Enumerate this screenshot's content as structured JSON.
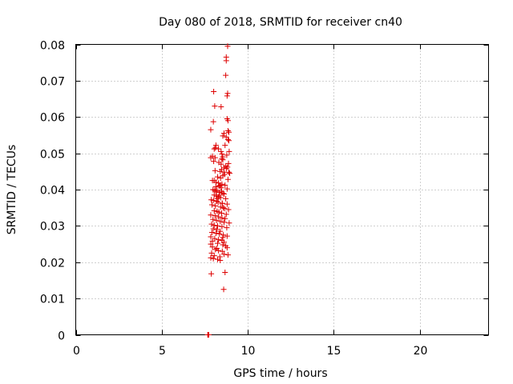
{
  "chart_data": {
    "type": "scatter",
    "title": "Day 080 of 2018, SRMTID for receiver cn40",
    "xlabel": "GPS time / hours",
    "ylabel": "SRMTID / TECUs",
    "xlim": [
      0,
      24
    ],
    "ylim": [
      0,
      0.08
    ],
    "x_ticks": [
      "0",
      "5",
      "10",
      "15",
      "20"
    ],
    "y_ticks": [
      "0",
      "0.01",
      "0.02",
      "0.03",
      "0.04",
      "0.05",
      "0.06",
      "0.07",
      "0.08"
    ],
    "grid": true,
    "marker": "plus",
    "color": "#dd0000",
    "series": [
      {
        "x": [
          8.83,
          8.75,
          8.75,
          8.72,
          8.83,
          8.8,
          8.02,
          8.45,
          8.08,
          8.8,
          8.85,
          8.0,
          7.85,
          8.85,
          8.9,
          8.62,
          8.55,
          8.75,
          8.85,
          8.9,
          8.15,
          8.12,
          8.68,
          8.05,
          8.3,
          8.45,
          8.5,
          8.92,
          8.78,
          7.95,
          8.1,
          8.55,
          8.5,
          7.85,
          8.55,
          8.02,
          8.32,
          8.45,
          8.88,
          8.72,
          8.82,
          8.62,
          8.75,
          8.48,
          8.1,
          8.4,
          8.9,
          8.95,
          8.65,
          8.55,
          8.25,
          8.42,
          8.85,
          7.95,
          8.05,
          8.15,
          8.3,
          8.5,
          8.68,
          8.35,
          8.15,
          8.45,
          8.8,
          7.98,
          8.08,
          8.22,
          8.48,
          8.35,
          8.55,
          8.62,
          8.05,
          8.18,
          8.3,
          8.42,
          8.72,
          7.88,
          8.0,
          8.2,
          8.28,
          8.52,
          8.8,
          7.92,
          8.12,
          8.42,
          8.58,
          8.65,
          8.88,
          8.05,
          8.22,
          8.32,
          8.48,
          8.75,
          7.85,
          8.1,
          8.3,
          8.5,
          8.68,
          7.98,
          8.18,
          8.4,
          8.62,
          8.92,
          7.9,
          8.05,
          8.25,
          8.5,
          8.78,
          8.0,
          8.2,
          8.4,
          7.92,
          8.15,
          8.35,
          8.58,
          8.8,
          7.85,
          8.55,
          8.08,
          8.3,
          8.5,
          7.95,
          8.62,
          8.25,
          7.85,
          8.55,
          8.72,
          7.95,
          8.8,
          8.2,
          8.12,
          8.3,
          8.52,
          7.9,
          8.62,
          8.85,
          8.05,
          8.38,
          7.85,
          8.0,
          8.25,
          8.4,
          8.68,
          7.88,
          8.6,
          8.22,
          8.35,
          8.15,
          8.52,
          8.62,
          8.4,
          7.68,
          7.68,
          7.7,
          7.72,
          7.7,
          7.73
        ],
        "y": [
          0.0795,
          0.0765,
          0.0755,
          0.0715,
          0.0665,
          0.0658,
          0.067,
          0.0628,
          0.063,
          0.0595,
          0.059,
          0.0587,
          0.0565,
          0.0562,
          0.0558,
          0.0555,
          0.0548,
          0.0545,
          0.0538,
          0.0535,
          0.0522,
          0.0515,
          0.0522,
          0.0512,
          0.0512,
          0.0505,
          0.0498,
          0.0505,
          0.0495,
          0.0492,
          0.0488,
          0.049,
          0.0485,
          0.0488,
          0.0482,
          0.0478,
          0.0475,
          0.047,
          0.0472,
          0.0465,
          0.0462,
          0.046,
          0.0458,
          0.0455,
          0.0452,
          0.045,
          0.0448,
          0.0445,
          0.0442,
          0.0438,
          0.0435,
          0.0432,
          0.0428,
          0.0425,
          0.0425,
          0.042,
          0.0418,
          0.0415,
          0.0412,
          0.041,
          0.0408,
          0.0405,
          0.0402,
          0.04,
          0.0398,
          0.0398,
          0.0395,
          0.0392,
          0.039,
          0.0388,
          0.0385,
          0.0382,
          0.038,
          0.0378,
          0.0375,
          0.0372,
          0.037,
          0.0368,
          0.0365,
          0.0362,
          0.036,
          0.0358,
          0.0355,
          0.0352,
          0.035,
          0.0348,
          0.0345,
          0.0342,
          0.034,
          0.0338,
          0.0335,
          0.0332,
          0.033,
          0.0328,
          0.0325,
          0.0322,
          0.032,
          0.0318,
          0.0315,
          0.0312,
          0.031,
          0.0308,
          0.0305,
          0.0302,
          0.03,
          0.0298,
          0.0295,
          0.0292,
          0.029,
          0.0285,
          0.0282,
          0.028,
          0.0278,
          0.0275,
          0.0272,
          0.027,
          0.0268,
          0.0265,
          0.0262,
          0.026,
          0.0258,
          0.0255,
          0.0252,
          0.025,
          0.0248,
          0.0245,
          0.0242,
          0.024,
          0.0238,
          0.0235,
          0.0232,
          0.023,
          0.0225,
          0.0222,
          0.022,
          0.0218,
          0.0215,
          0.0212,
          0.021,
          0.0208,
          0.0205,
          0.0172,
          0.0168,
          0.0125,
          0.0375,
          0.0385,
          0.0395,
          0.0362,
          0.0448,
          0.0412,
          0.0,
          0.0,
          0.0,
          0.0,
          0.0,
          0.0
        ]
      }
    ]
  }
}
